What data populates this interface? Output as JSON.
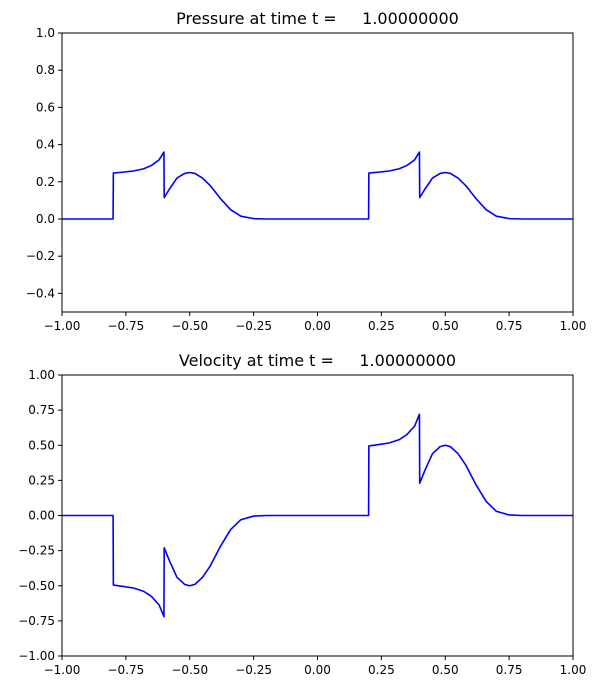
{
  "chart_data": [
    {
      "type": "line",
      "title": "Pressure at time t =     1.00000000",
      "xlabel": "",
      "ylabel": "",
      "xlim": [
        -1.0,
        1.0
      ],
      "ylim": [
        -0.5,
        1.0
      ],
      "xticks": [
        -1.0,
        -0.75,
        -0.5,
        -0.25,
        0.0,
        0.25,
        0.5,
        0.75,
        1.0
      ],
      "xtick_labels": [
        "−1.00",
        "−0.75",
        "−0.50",
        "−0.25",
        "0.00",
        "0.25",
        "0.50",
        "0.75",
        "1.00"
      ],
      "yticks": [
        -0.4,
        -0.2,
        0.0,
        0.2,
        0.4,
        0.6,
        0.8,
        1.0
      ],
      "ytick_labels": [
        "−0.4",
        "−0.2",
        "0.0",
        "0.2",
        "0.4",
        "0.6",
        "0.8",
        "1.0"
      ],
      "grid": false,
      "series": [
        {
          "color": "#0000ff",
          "x": [
            -1.0,
            -0.8,
            -0.799,
            -0.76,
            -0.72,
            -0.68,
            -0.65,
            -0.62,
            -0.601,
            -0.6,
            -0.58,
            -0.55,
            -0.52,
            -0.5,
            -0.48,
            -0.45,
            -0.42,
            -0.38,
            -0.34,
            -0.3,
            -0.25,
            -0.2,
            0.0,
            0.2,
            0.201,
            0.24,
            0.28,
            0.32,
            0.35,
            0.38,
            0.399,
            0.4,
            0.42,
            0.45,
            0.48,
            0.5,
            0.52,
            0.55,
            0.58,
            0.62,
            0.66,
            0.7,
            0.75,
            0.8,
            1.0
          ],
          "y": [
            0.0,
            0.0,
            0.247,
            0.252,
            0.258,
            0.27,
            0.288,
            0.318,
            0.36,
            0.115,
            0.16,
            0.22,
            0.245,
            0.25,
            0.245,
            0.22,
            0.18,
            0.11,
            0.05,
            0.015,
            0.002,
            0.0,
            0.0,
            0.0,
            0.247,
            0.252,
            0.258,
            0.27,
            0.288,
            0.318,
            0.36,
            0.115,
            0.16,
            0.22,
            0.245,
            0.25,
            0.245,
            0.22,
            0.18,
            0.11,
            0.05,
            0.015,
            0.002,
            0.0,
            0.0
          ]
        }
      ]
    },
    {
      "type": "line",
      "title": "Velocity at time t =     1.00000000",
      "xlabel": "",
      "ylabel": "",
      "xlim": [
        -1.0,
        1.0
      ],
      "ylim": [
        -1.0,
        1.0
      ],
      "xticks": [
        -1.0,
        -0.75,
        -0.5,
        -0.25,
        0.0,
        0.25,
        0.5,
        0.75,
        1.0
      ],
      "xtick_labels": [
        "−1.00",
        "−0.75",
        "−0.50",
        "−0.25",
        "0.00",
        "0.25",
        "0.50",
        "0.75",
        "1.00"
      ],
      "yticks": [
        -1.0,
        -0.75,
        -0.5,
        -0.25,
        0.0,
        0.25,
        0.5,
        0.75,
        1.0
      ],
      "ytick_labels": [
        "−1.00",
        "−0.75",
        "−0.50",
        "−0.25",
        "0.00",
        "0.25",
        "0.50",
        "0.75",
        "1.00"
      ],
      "grid": false,
      "series": [
        {
          "color": "#0000ff",
          "x": [
            -1.0,
            -0.8,
            -0.799,
            -0.76,
            -0.72,
            -0.68,
            -0.65,
            -0.62,
            -0.601,
            -0.6,
            -0.58,
            -0.55,
            -0.52,
            -0.5,
            -0.48,
            -0.45,
            -0.42,
            -0.38,
            -0.34,
            -0.3,
            -0.25,
            -0.2,
            0.0,
            0.2,
            0.201,
            0.24,
            0.28,
            0.32,
            0.35,
            0.38,
            0.399,
            0.4,
            0.42,
            0.45,
            0.48,
            0.5,
            0.52,
            0.55,
            0.58,
            0.62,
            0.66,
            0.7,
            0.75,
            0.8,
            1.0
          ],
          "y": [
            0.0,
            0.0,
            -0.495,
            -0.505,
            -0.516,
            -0.54,
            -0.576,
            -0.636,
            -0.72,
            -0.23,
            -0.32,
            -0.44,
            -0.49,
            -0.5,
            -0.49,
            -0.44,
            -0.36,
            -0.22,
            -0.1,
            -0.03,
            -0.004,
            0.0,
            0.0,
            0.0,
            0.495,
            0.505,
            0.516,
            0.54,
            0.576,
            0.636,
            0.72,
            0.23,
            0.32,
            0.44,
            0.49,
            0.5,
            0.49,
            0.44,
            0.36,
            0.22,
            0.1,
            0.03,
            0.004,
            0.0,
            0.0
          ]
        }
      ]
    }
  ]
}
